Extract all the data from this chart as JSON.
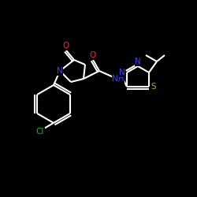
{
  "background_color": "#000000",
  "bond_color": "#ffffff",
  "atom_colors": {
    "N": "#4040ff",
    "O": "#ff2020",
    "S": "#ccaa00",
    "Cl": "#00cc00",
    "C": "#ffffff"
  },
  "figsize": [
    2.5,
    2.5
  ],
  "dpi": 100
}
